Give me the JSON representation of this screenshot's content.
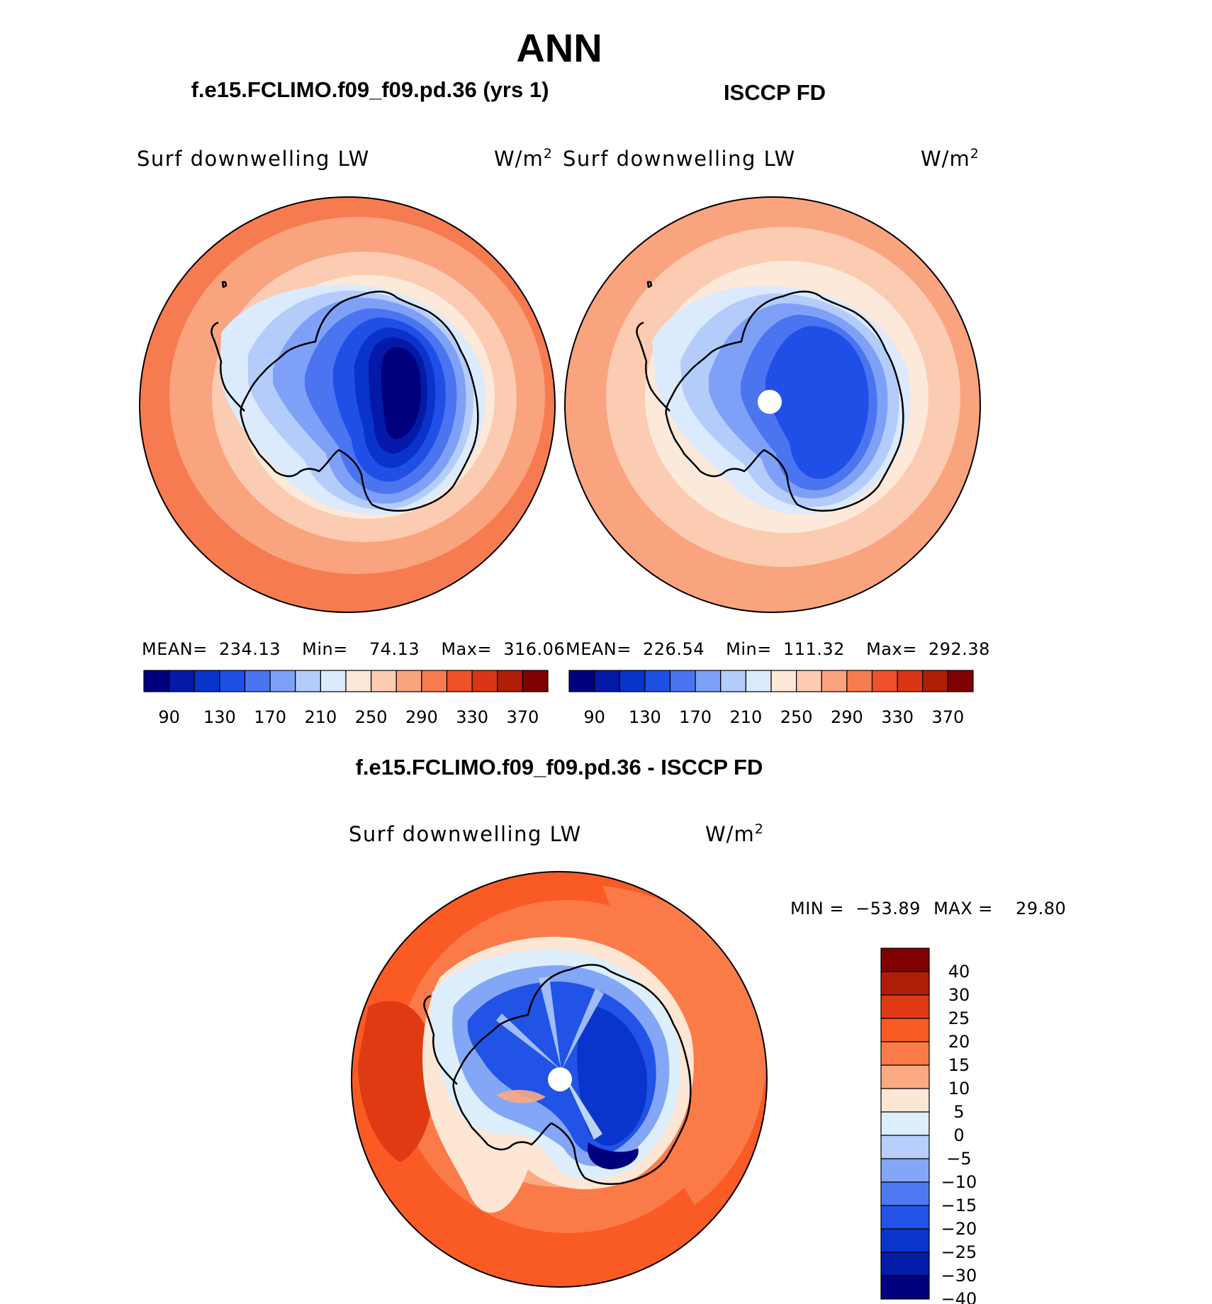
{
  "figure": {
    "title": "ANN",
    "colors": {
      "seq": [
        "#00007f",
        "#0419a8",
        "#0a33cc",
        "#1f4fe6",
        "#4a74f0",
        "#7ea1f7",
        "#b3ccfa",
        "#dbeafc",
        "#fde9d9",
        "#fbcbb2",
        "#f9a37f",
        "#f77b50",
        "#f0502a",
        "#d93516",
        "#b01e08",
        "#7f0000"
      ],
      "diff": [
        "#7f0000",
        "#b01e08",
        "#e03a12",
        "#fa5a24",
        "#fb7b48",
        "#fbaa83",
        "#fde6d4",
        "#ddeefc",
        "#b7d0fb",
        "#83a6f6",
        "#4e79f0",
        "#2053e6",
        "#0a35cc",
        "#041ca8",
        "#00007f"
      ]
    }
  },
  "panels": [
    {
      "id": "model",
      "heading": "f.e15.FCLIMO.f09_f09.pd.36 (yrs 1)",
      "variable": "Surf downwelling LW",
      "units": "W/m",
      "units_power": "2",
      "stats": {
        "mean_label": "MEAN=",
        "mean": "234.13",
        "min_label": "Min=",
        "min": "74.13",
        "max_label": "Max=",
        "max": "316.06"
      },
      "colorbar_labels": [
        "90",
        "130",
        "170",
        "210",
        "250",
        "290",
        "330",
        "370"
      ],
      "pole_hole": false
    },
    {
      "id": "obs",
      "heading": "ISCCP FD",
      "variable": "Surf downwelling LW",
      "units": "W/m",
      "units_power": "2",
      "stats": {
        "mean_label": "MEAN=",
        "mean": "226.54",
        "min_label": "Min=",
        "min": "111.32",
        "max_label": "Max=",
        "max": "292.38"
      },
      "colorbar_labels": [
        "90",
        "130",
        "170",
        "210",
        "250",
        "290",
        "330",
        "370"
      ],
      "pole_hole": true
    }
  ],
  "diff_panel": {
    "heading": "f.e15.FCLIMO.f09_f09.pd.36 - ISCCP FD",
    "variable": "Surf downwelling LW",
    "units": "W/m",
    "units_power": "2",
    "min_label": "MIN =",
    "min": "−53.89",
    "max_label": "MAX =",
    "max": "29.80",
    "colorbar_labels": [
      "40",
      "30",
      "25",
      "20",
      "15",
      "10",
      "5",
      "0",
      "−5",
      "−10",
      "−15",
      "−20",
      "−25",
      "−30",
      "−40"
    ]
  }
}
